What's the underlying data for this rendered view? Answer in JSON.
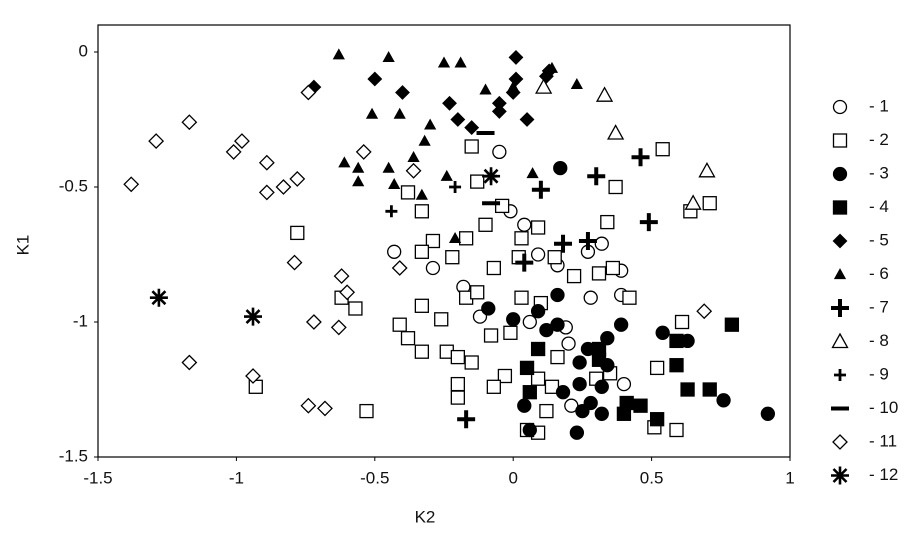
{
  "chart_data": {
    "type": "scatter",
    "x_label": "K2",
    "y_label": "K1",
    "xlim": [
      -1.5,
      1
    ],
    "ylim": [
      -1.5,
      0.1
    ],
    "xticks": [
      -1.5,
      -1,
      -0.5,
      0,
      0.5,
      1
    ],
    "yticks": [
      0,
      -0.5,
      -1,
      -1.5
    ],
    "grid": false,
    "legend": "right",
    "series": [
      {
        "name": "- 1",
        "marker": "circle",
        "filled": false,
        "color": "#000",
        "x": [
          -0.05,
          -0.01,
          0.04,
          -0.43,
          -0.29,
          0.09,
          0.16,
          0.27,
          0.32,
          0.39,
          0.39,
          0.28,
          -0.18,
          -0.12,
          0.06,
          0.19,
          0.2,
          0.4,
          0.21
        ],
        "values": [
          -0.37,
          -0.59,
          -0.64,
          -0.74,
          -0.8,
          -0.75,
          -0.79,
          -0.74,
          -0.71,
          -0.81,
          -0.9,
          -0.91,
          -0.87,
          -0.98,
          -1.0,
          -1.02,
          -1.08,
          -1.23,
          -1.31
        ]
      },
      {
        "name": "- 2",
        "marker": "square",
        "filled": false,
        "color": "#000",
        "x": [
          -0.15,
          0.54,
          -0.13,
          -0.38,
          -0.33,
          -0.1,
          -0.04,
          0.09,
          0.34,
          0.64,
          0.71,
          0.37,
          -0.78,
          -0.29,
          -0.17,
          -0.33,
          -0.22,
          -0.07,
          0.03,
          0.02,
          0.15,
          0.22,
          0.31,
          0.36,
          0.42,
          -0.62,
          -0.57,
          -0.17,
          -0.13,
          0.03,
          0.1,
          -0.33,
          -0.41,
          -0.26,
          -0.38,
          -0.08,
          -0.01,
          -0.33,
          -0.24,
          -0.2,
          -0.15,
          0.16,
          -0.03,
          0.09,
          -0.07,
          -0.2,
          -0.2,
          0.14,
          0.3,
          0.35,
          0.52,
          0.61,
          -0.93,
          -0.53,
          0.12,
          0.09,
          0.51,
          0.59,
          0.05
        ],
        "values": [
          -0.35,
          -0.36,
          -0.48,
          -0.52,
          -0.59,
          -0.64,
          -0.57,
          -0.65,
          -0.63,
          -0.59,
          -0.56,
          -0.5,
          -0.67,
          -0.7,
          -0.69,
          -0.74,
          -0.76,
          -0.8,
          -0.69,
          -0.76,
          -0.76,
          -0.83,
          -0.82,
          -0.8,
          -0.91,
          -0.91,
          -0.95,
          -0.91,
          -0.89,
          -0.91,
          -0.93,
          -0.94,
          -1.01,
          -0.99,
          -1.06,
          -1.05,
          -1.04,
          -1.11,
          -1.11,
          -1.13,
          -1.15,
          -1.13,
          -1.2,
          -1.21,
          -1.24,
          -1.23,
          -1.28,
          -1.24,
          -1.21,
          -1.19,
          -1.17,
          -1.0,
          -1.24,
          -1.33,
          -1.33,
          -1.41,
          -1.39,
          -1.4,
          -1.4
        ]
      },
      {
        "name": "- 3",
        "marker": "circle",
        "filled": true,
        "color": "#000",
        "x": [
          0.17,
          0.0,
          -0.09,
          0.16,
          0.09,
          0.12,
          0.16,
          0.39,
          0.54,
          0.63,
          0.34,
          0.34,
          0.24,
          0.27,
          0.18,
          0.24,
          0.32,
          0.04,
          0.06,
          0.25,
          0.28,
          0.32,
          0.23,
          0.76,
          0.92
        ],
        "values": [
          -0.43,
          -0.99,
          -0.95,
          -0.9,
          -0.96,
          -1.03,
          -1.01,
          -1.01,
          -1.04,
          -1.07,
          -1.06,
          -1.16,
          -1.15,
          -1.1,
          -1.26,
          -1.23,
          -1.24,
          -1.31,
          -1.4,
          -1.33,
          -1.3,
          -1.34,
          -1.41,
          -1.29,
          -1.34
        ]
      },
      {
        "name": "- 4",
        "marker": "square",
        "filled": true,
        "color": "#000",
        "x": [
          0.09,
          0.05,
          0.06,
          0.31,
          0.31,
          0.59,
          0.59,
          0.79,
          0.63,
          0.71,
          0.41,
          0.46,
          0.4,
          0.52
        ],
        "values": [
          -1.1,
          -1.17,
          -1.26,
          -1.1,
          -1.14,
          -1.07,
          -1.16,
          -1.01,
          -1.25,
          -1.25,
          -1.3,
          -1.31,
          -1.34,
          -1.36
        ]
      },
      {
        "name": "- 5",
        "marker": "diamond",
        "filled": true,
        "color": "#000",
        "x": [
          -0.72,
          -0.5,
          -0.4,
          -0.23,
          -0.2,
          -0.15,
          -0.05,
          -0.05,
          0.01,
          0.01,
          0.0,
          0.05,
          0.12,
          0.13
        ],
        "values": [
          -0.13,
          -0.1,
          -0.15,
          -0.19,
          -0.25,
          -0.28,
          -0.19,
          -0.22,
          -0.02,
          -0.1,
          -0.15,
          -0.25,
          -0.09,
          -0.07
        ]
      },
      {
        "name": "- 6",
        "marker": "triangle",
        "filled": true,
        "color": "#000",
        "x": [
          -0.63,
          -0.45,
          -0.25,
          -0.19,
          0.14,
          0.23,
          -0.1,
          0.0,
          -0.51,
          -0.41,
          -0.3,
          -0.32,
          -0.36,
          -0.45,
          -0.61,
          -0.56,
          -0.56,
          -0.43,
          -0.33,
          -0.24,
          0.07,
          -0.21
        ],
        "values": [
          -0.01,
          -0.02,
          -0.04,
          -0.04,
          -0.06,
          -0.12,
          -0.14,
          -0.13,
          -0.23,
          -0.23,
          -0.27,
          -0.33,
          -0.39,
          -0.43,
          -0.41,
          -0.43,
          -0.48,
          -0.49,
          -0.53,
          -0.46,
          -0.45,
          -0.69
        ]
      },
      {
        "name": "- 7",
        "marker": "plus-bold",
        "filled": true,
        "color": "#000",
        "x": [
          0.46,
          0.3,
          0.1,
          0.49,
          0.18,
          0.27,
          0.04,
          -0.17
        ],
        "values": [
          -0.39,
          -0.46,
          -0.51,
          -0.63,
          -0.71,
          -0.7,
          -0.78,
          -1.36
        ]
      },
      {
        "name": "- 8",
        "marker": "triangle",
        "filled": false,
        "color": "#000",
        "x": [
          0.11,
          0.33,
          0.37,
          0.7,
          0.65
        ],
        "values": [
          -0.13,
          -0.16,
          -0.3,
          -0.44,
          -0.56
        ]
      },
      {
        "name": "- 9",
        "marker": "plus",
        "filled": true,
        "color": "#000",
        "x": [
          -0.44,
          -0.21,
          -0.08,
          0.04
        ],
        "values": [
          -0.59,
          -0.5,
          -0.46,
          -0.78
        ]
      },
      {
        "name": "- 10",
        "marker": "dash",
        "filled": true,
        "color": "#000",
        "x": [
          -0.1,
          -0.08
        ],
        "values": [
          -0.3,
          -0.56
        ]
      },
      {
        "name": "- 11",
        "marker": "diamond",
        "filled": false,
        "color": "#000",
        "x": [
          -1.29,
          -1.17,
          -1.38,
          -1.01,
          -0.98,
          -0.89,
          -0.89,
          -0.83,
          -0.78,
          -0.79,
          -0.74,
          -0.54,
          -0.36,
          -0.41,
          -0.62,
          -0.6,
          -0.72,
          -0.63,
          -1.17,
          -0.94,
          -0.74,
          -0.68,
          0.69
        ],
        "values": [
          -0.33,
          -0.26,
          -0.49,
          -0.37,
          -0.33,
          -0.41,
          -0.52,
          -0.5,
          -0.47,
          -0.78,
          -0.15,
          -0.37,
          -0.44,
          -0.8,
          -0.83,
          -0.89,
          -1.0,
          -1.02,
          -1.15,
          -1.2,
          -1.31,
          -1.32,
          -0.96
        ]
      },
      {
        "name": "- 12",
        "marker": "asterisk",
        "filled": true,
        "color": "#000",
        "x": [
          -1.28,
          -0.94,
          -0.08
        ],
        "values": [
          -0.91,
          -0.98,
          -0.46
        ]
      }
    ]
  }
}
